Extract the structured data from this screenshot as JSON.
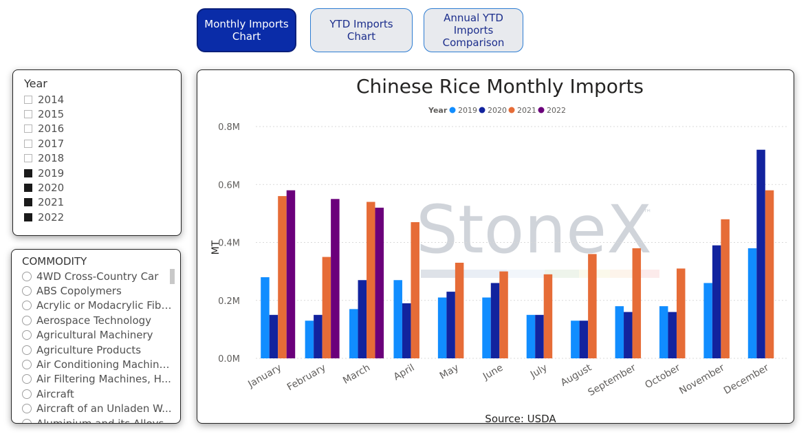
{
  "tabs": [
    {
      "label": "Monthly Imports Chart",
      "active": true
    },
    {
      "label": "YTD Imports Chart",
      "active": false
    },
    {
      "label": "Annual YTD Imports Comparison",
      "active": false
    }
  ],
  "year_slicer": {
    "title": "Year",
    "items": [
      {
        "label": "2014",
        "checked": false
      },
      {
        "label": "2015",
        "checked": false
      },
      {
        "label": "2016",
        "checked": false
      },
      {
        "label": "2017",
        "checked": false
      },
      {
        "label": "2018",
        "checked": false
      },
      {
        "label": "2019",
        "checked": true
      },
      {
        "label": "2020",
        "checked": true
      },
      {
        "label": "2021",
        "checked": true
      },
      {
        "label": "2022",
        "checked": true
      }
    ]
  },
  "commodity_slicer": {
    "title": "COMMODITY",
    "items": [
      "4WD Cross-Country Car",
      "ABS Copolymers",
      "Acrylic or Modacrylic Fibr...",
      "Aerospace Technology",
      "Agricultural Machinery",
      "Agriculture Products",
      "Air Conditioning Machine...",
      "Air Filtering Machines, H...",
      "Aircraft",
      "Aircraft of an Unladen W...",
      "Aluminium and its Alloys..."
    ]
  },
  "watermark": {
    "text": "StoneX",
    "tm": "™"
  },
  "colors": {
    "2019": "#118dff",
    "2020": "#12239e",
    "2021": "#e66c37",
    "2022": "#6b007b"
  },
  "chart_data": {
    "type": "bar",
    "title": "Chinese Rice Monthly Imports",
    "legend_title": "Year",
    "legend_position": "top-center",
    "xlabel": "",
    "ylabel": "MT",
    "source": "Source: USDA",
    "ylim": [
      0,
      0.8
    ],
    "yticks": [
      "0.0M",
      "0.2M",
      "0.4M",
      "0.6M",
      "0.8M"
    ],
    "grid": true,
    "categories": [
      "January",
      "February",
      "March",
      "April",
      "May",
      "June",
      "July",
      "August",
      "September",
      "October",
      "November",
      "December"
    ],
    "series": [
      {
        "name": "2019",
        "values": [
          0.28,
          0.13,
          0.17,
          0.27,
          0.21,
          0.21,
          0.15,
          0.13,
          0.18,
          0.18,
          0.26,
          0.38
        ]
      },
      {
        "name": "2020",
        "values": [
          0.15,
          0.15,
          0.27,
          0.19,
          0.23,
          0.26,
          0.15,
          0.13,
          0.16,
          0.16,
          0.39,
          0.72
        ]
      },
      {
        "name": "2021",
        "values": [
          0.56,
          0.35,
          0.54,
          0.47,
          0.33,
          0.3,
          0.29,
          0.36,
          0.38,
          0.31,
          0.48,
          0.58
        ]
      },
      {
        "name": "2022",
        "values": [
          0.58,
          0.55,
          0.52,
          null,
          null,
          null,
          null,
          null,
          null,
          null,
          null,
          null
        ]
      }
    ]
  }
}
